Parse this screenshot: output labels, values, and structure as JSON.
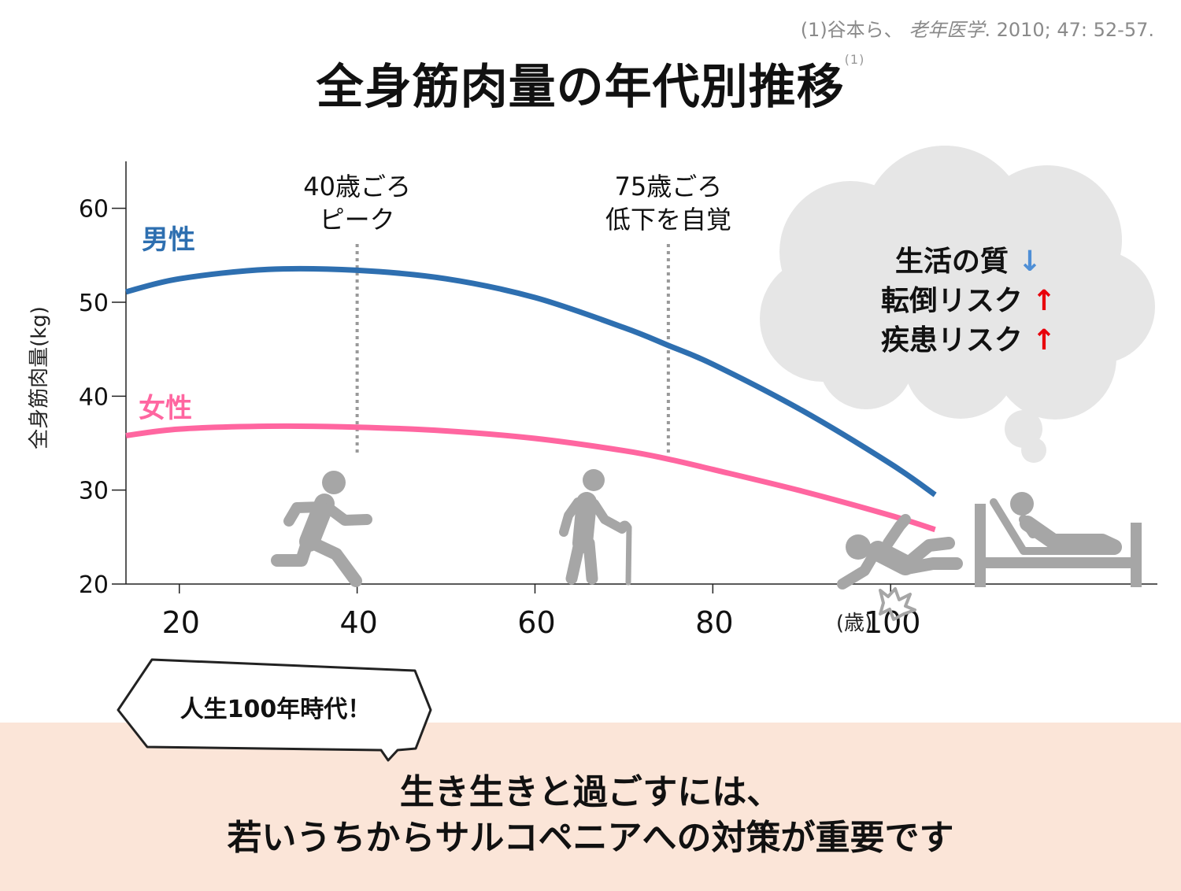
{
  "citation": {
    "authors": "(1)谷本ら、",
    "journal": "老年医学",
    "details": ". 2010; 47: 52-57."
  },
  "title": {
    "text": "全身筋肉量の年代別推移",
    "ref": "(1)"
  },
  "colors": {
    "male": "#2e6fb0",
    "female": "#ff66a0",
    "icon": "#a6a6a6",
    "cloud": "#e6e6e6",
    "band": "#fbe5d8"
  },
  "chart_data": {
    "type": "line",
    "ylabel": "全身筋肉量(kg)",
    "xunit": "(歳)",
    "xlim": [
      14,
      130
    ],
    "ylim": [
      20,
      65
    ],
    "xticks": [
      20,
      40,
      60,
      80,
      100
    ],
    "yticks": [
      20,
      30,
      40,
      50,
      60
    ],
    "series": [
      {
        "name": "男性",
        "color": "#2e6fb0",
        "x": [
          14,
          20,
          30,
          40,
          50,
          60,
          70,
          75,
          80,
          90,
          100,
          105
        ],
        "y": [
          51.1,
          52.5,
          53.5,
          53.4,
          52.5,
          50.5,
          47.3,
          45.4,
          43.4,
          38.5,
          32.8,
          29.5
        ]
      },
      {
        "name": "女性",
        "color": "#ff66a0",
        "x": [
          14,
          20,
          30,
          40,
          50,
          60,
          70,
          75,
          80,
          90,
          100,
          105
        ],
        "y": [
          35.8,
          36.5,
          36.8,
          36.7,
          36.3,
          35.5,
          34.2,
          33.3,
          32.2,
          29.9,
          27.3,
          25.8
        ]
      }
    ],
    "annotations": [
      {
        "x": 40,
        "lines": [
          "40歳ごろ",
          "ピーク"
        ]
      },
      {
        "x": 75,
        "lines": [
          "75歳ごろ",
          "低下を自覚"
        ]
      }
    ]
  },
  "thought": {
    "items": [
      {
        "label": "生活の質",
        "arrow": "↓",
        "direction": "down"
      },
      {
        "label": "転倒リスク",
        "arrow": "↑",
        "direction": "up"
      },
      {
        "label": "疾患リスク",
        "arrow": "↑",
        "direction": "up"
      }
    ]
  },
  "icons": [
    "running-person-icon",
    "elderly-cane-person-icon",
    "falling-person-icon",
    "bedridden-person-icon"
  ],
  "callout": {
    "text": "人生100年時代！"
  },
  "message": {
    "line1": "生き生きと過ごすには、",
    "line2": "若いうちからサルコペニアへの対策が重要です"
  }
}
